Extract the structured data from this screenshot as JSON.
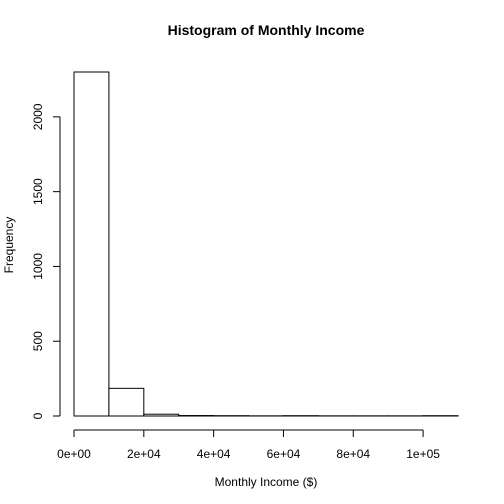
{
  "chart_data": {
    "type": "bar",
    "title": "Histogram of Monthly Income",
    "xlabel": "Monthly Income ($)",
    "ylabel": "Frequency",
    "bins": [
      {
        "start": 0,
        "end": 10000,
        "count": 2300
      },
      {
        "start": 10000,
        "end": 20000,
        "count": 185
      },
      {
        "start": 20000,
        "end": 30000,
        "count": 12
      },
      {
        "start": 30000,
        "end": 40000,
        "count": 3
      },
      {
        "start": 40000,
        "end": 50000,
        "count": 2
      },
      {
        "start": 50000,
        "end": 60000,
        "count": 1
      },
      {
        "start": 60000,
        "end": 70000,
        "count": 2
      },
      {
        "start": 70000,
        "end": 80000,
        "count": 1
      },
      {
        "start": 80000,
        "end": 90000,
        "count": 1
      },
      {
        "start": 90000,
        "end": 100000,
        "count": 1
      },
      {
        "start": 100000,
        "end": 110000,
        "count": 2
      }
    ],
    "xlim": [
      0,
      110000
    ],
    "ylim": [
      0,
      2300
    ],
    "x_ticks": [
      {
        "value": 0,
        "label": "0e+00"
      },
      {
        "value": 20000,
        "label": "2e+04"
      },
      {
        "value": 40000,
        "label": "4e+04"
      },
      {
        "value": 60000,
        "label": "6e+04"
      },
      {
        "value": 80000,
        "label": "8e+04"
      },
      {
        "value": 100000,
        "label": "1e+05"
      }
    ],
    "y_ticks": [
      {
        "value": 0,
        "label": "0"
      },
      {
        "value": 500,
        "label": "500"
      },
      {
        "value": 1000,
        "label": "1000"
      },
      {
        "value": 1500,
        "label": "1500"
      },
      {
        "value": 2000,
        "label": "2000"
      }
    ],
    "grid": false,
    "legend": "none"
  }
}
